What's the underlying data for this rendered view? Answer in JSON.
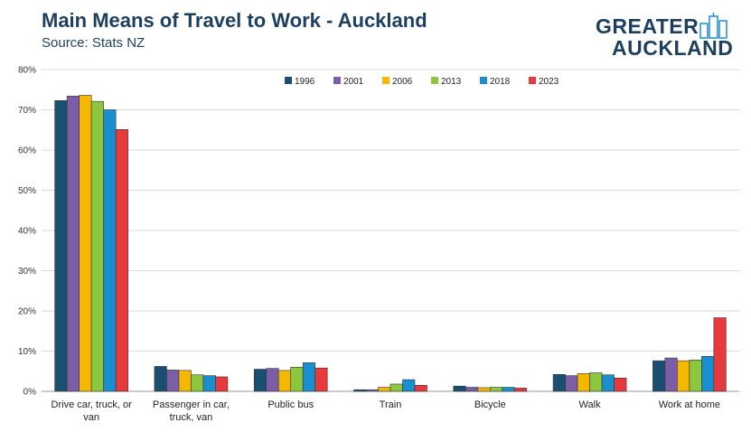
{
  "header": {
    "title": "Main Means of Travel to Work - Auckland",
    "subtitle": "Source: Stats NZ"
  },
  "logo": {
    "line1": "GREATER",
    "line2": "AUCKLAND"
  },
  "chart_data": {
    "type": "bar",
    "title": "Main Means of Travel to Work - Auckland",
    "subtitle": "Source: Stats NZ",
    "categories": [
      "Drive car, truck, or van",
      "Passenger in car, truck, van",
      "Public bus",
      "Train",
      "Bicycle",
      "Walk",
      "Work at home"
    ],
    "category_lines": [
      [
        "Drive car, truck, or",
        "van"
      ],
      [
        "Passenger in car,",
        "truck, van"
      ],
      [
        "Public bus"
      ],
      [
        "Train"
      ],
      [
        "Bicycle"
      ],
      [
        "Walk"
      ],
      [
        "Work at home"
      ]
    ],
    "series": [
      {
        "name": "1996",
        "color": "#1b4f72",
        "values": [
          72.3,
          6.2,
          5.5,
          0.4,
          1.3,
          4.2,
          7.6
        ]
      },
      {
        "name": "2001",
        "color": "#7b5ea7",
        "values": [
          73.4,
          5.3,
          5.7,
          0.4,
          1.0,
          3.9,
          8.3
        ]
      },
      {
        "name": "2006",
        "color": "#f5b800",
        "values": [
          73.6,
          5.2,
          5.2,
          1.0,
          0.9,
          4.4,
          7.6
        ]
      },
      {
        "name": "2013",
        "color": "#8dc63f",
        "values": [
          72.1,
          4.1,
          6.0,
          1.8,
          1.0,
          4.6,
          7.8
        ]
      },
      {
        "name": "2018",
        "color": "#1a8fcf",
        "values": [
          70.0,
          3.9,
          7.1,
          2.9,
          1.0,
          4.1,
          8.7
        ]
      },
      {
        "name": "2023",
        "color": "#e8393c",
        "values": [
          65.1,
          3.6,
          5.8,
          1.5,
          0.8,
          3.3,
          18.3
        ]
      }
    ],
    "y_ticks": [
      "0%",
      "10%",
      "20%",
      "30%",
      "40%",
      "50%",
      "60%",
      "70%",
      "80%"
    ],
    "ylim": [
      0,
      80
    ],
    "grid": true,
    "legend_position": "top-center",
    "xlabel": "",
    "ylabel": ""
  }
}
